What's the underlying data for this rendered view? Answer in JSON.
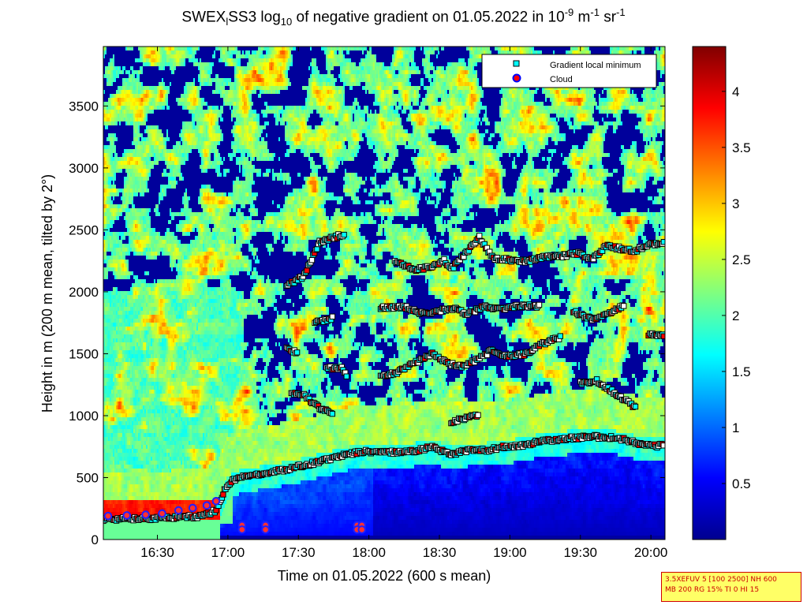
{
  "chart_data": {
    "type": "heatmap",
    "title_prefix": "SWEX",
    "title_sub1": "l",
    "title_mid1": "SS3 log",
    "title_sub2": "10",
    "title_mid2": " of negative gradient on 01.05.2022 in 10",
    "title_sup1": "-9",
    "title_mid3": " m",
    "title_sup2": "-1",
    "title_mid4": " sr",
    "title_sup3": "-1",
    "xlabel": "Time on 01.05.2022 (600 s mean)",
    "ylabel": "Height in m (200 m mean, tilted by 2°)",
    "x_range": [
      "16:07",
      "20:06"
    ],
    "xlim_minutes": [
      0,
      239
    ],
    "x_ticks": [
      {
        "label": "16:30",
        "minute": 23
      },
      {
        "label": "17:00",
        "minute": 53
      },
      {
        "label": "17:30",
        "minute": 83
      },
      {
        "label": "18:00",
        "minute": 113
      },
      {
        "label": "18:30",
        "minute": 143
      },
      {
        "label": "19:00",
        "minute": 173
      },
      {
        "label": "19:30",
        "minute": 203
      },
      {
        "label": "20:00",
        "minute": 233
      }
    ],
    "ylim": [
      0,
      3980
    ],
    "y_ticks": [
      0,
      500,
      1000,
      1500,
      2000,
      2500,
      3000,
      3500
    ],
    "colorbar": {
      "range": [
        0,
        4.4
      ],
      "ticks": [
        "0.5",
        "1",
        "1.5",
        "2",
        "2.5",
        "3",
        "3.5",
        "4"
      ],
      "tick_values": [
        0.5,
        1,
        1.5,
        2,
        2.5,
        3,
        3.5,
        4
      ],
      "colormap": "jet"
    },
    "legend": {
      "placement": "top-right",
      "entries": [
        {
          "label": "Gradient local minimum",
          "marker": "square",
          "color": "#00ffff"
        },
        {
          "label": "Cloud",
          "marker": "circle",
          "color": "#ff0000",
          "edge": "#0000ff"
        }
      ]
    },
    "series": [
      {
        "name": "Gradient local minimum",
        "layers": [
          {
            "points": [
              [
                0,
                165
              ],
              [
                15,
                168
              ],
              [
                30,
                178
              ],
              [
                40,
                185
              ],
              [
                45,
                205
              ],
              [
                48,
                240
              ],
              [
                50,
                320
              ],
              [
                52,
                420
              ],
              [
                55,
                480
              ],
              [
                60,
                510
              ],
              [
                70,
                540
              ],
              [
                80,
                575
              ],
              [
                90,
                620
              ],
              [
                100,
                670
              ],
              [
                110,
                710
              ],
              [
                120,
                705
              ],
              [
                130,
                710
              ],
              [
                140,
                745
              ],
              [
                148,
                690
              ],
              [
                155,
                720
              ],
              [
                163,
                720
              ],
              [
                170,
                745
              ],
              [
                178,
                755
              ],
              [
                185,
                790
              ],
              [
                192,
                805
              ],
              [
                200,
                820
              ],
              [
                208,
                830
              ],
              [
                215,
                825
              ],
              [
                222,
                805
              ],
              [
                228,
                770
              ],
              [
                234,
                755
              ],
              [
                239,
                760
              ]
            ]
          },
          {
            "points": [
              [
                80,
                1180
              ],
              [
                86,
                1160
              ],
              [
                92,
                1060
              ],
              [
                98,
                1020
              ]
            ]
          },
          {
            "points": [
              [
                95,
                1390
              ],
              [
                102,
                1380
              ],
              [
                104,
                1300
              ]
            ]
          },
          {
            "points": [
              [
                118,
                1320
              ],
              [
                125,
                1350
              ],
              [
                133,
                1430
              ],
              [
                140,
                1500
              ],
              [
                147,
                1420
              ],
              [
                153,
                1400
              ],
              [
                158,
                1440
              ],
              [
                165,
                1520
              ],
              [
                172,
                1480
              ],
              [
                180,
                1500
              ],
              [
                187,
                1580
              ],
              [
                195,
                1640
              ]
            ]
          },
          {
            "points": [
              [
                203,
                1260
              ],
              [
                210,
                1280
              ],
              [
                217,
                1190
              ],
              [
                223,
                1110
              ],
              [
                227,
                1060
              ]
            ]
          },
          {
            "points": [
              [
                148,
                950
              ],
              [
                154,
                980
              ],
              [
                160,
                1010
              ]
            ]
          },
          {
            "points": [
              [
                78,
                1540
              ],
              [
                83,
                1500
              ]
            ]
          },
          {
            "points": [
              [
                90,
                1750
              ],
              [
                98,
                1790
              ]
            ]
          },
          {
            "points": [
              [
                118,
                1870
              ],
              [
                128,
                1880
              ],
              [
                135,
                1830
              ],
              [
                142,
                1840
              ],
              [
                148,
                1870
              ],
              [
                155,
                1820
              ],
              [
                162,
                1880
              ],
              [
                170,
                1860
              ],
              [
                178,
                1890
              ],
              [
                186,
                1880
              ]
            ]
          },
          {
            "points": [
              [
                200,
                1840
              ],
              [
                208,
                1780
              ],
              [
                216,
                1830
              ],
              [
                222,
                1900
              ]
            ]
          },
          {
            "points": [
              [
                232,
                1660
              ],
              [
                239,
                1640
              ]
            ]
          },
          {
            "points": [
              [
                78,
                2050
              ],
              [
                85,
                2120
              ],
              [
                92,
                2400
              ],
              [
                100,
                2450
              ],
              [
                103,
                2460
              ]
            ]
          },
          {
            "points": [
              [
                124,
                2250
              ],
              [
                132,
                2180
              ],
              [
                140,
                2200
              ],
              [
                145,
                2260
              ],
              [
                148,
                2180
              ],
              [
                155,
                2330
              ],
              [
                160,
                2440
              ],
              [
                166,
                2270
              ],
              [
                172,
                2260
              ],
              [
                180,
                2250
              ],
              [
                188,
                2280
              ],
              [
                195,
                2290
              ],
              [
                202,
                2310
              ],
              [
                208,
                2260
              ],
              [
                214,
                2370
              ],
              [
                220,
                2350
              ],
              [
                226,
                2330
              ],
              [
                232,
                2380
              ],
              [
                239,
                2390
              ]
            ]
          }
        ]
      },
      {
        "name": "Cloud",
        "points": [
          [
            2,
            190
          ],
          [
            10,
            195
          ],
          [
            18,
            200
          ],
          [
            25,
            210
          ],
          [
            32,
            235
          ],
          [
            38,
            255
          ],
          [
            44,
            275
          ],
          [
            48,
            310
          ],
          [
            59,
            115
          ],
          [
            59,
            80
          ],
          [
            69,
            115
          ],
          [
            69,
            80
          ],
          [
            108,
            115
          ],
          [
            110,
            115
          ],
          [
            108,
            80
          ],
          [
            110,
            80
          ]
        ]
      }
    ]
  },
  "info_box": {
    "line1": "3.5XEFUV 5 [100 2500] NH 600",
    "line2": "MB 200 RG 15% TI 0 HI 15"
  }
}
